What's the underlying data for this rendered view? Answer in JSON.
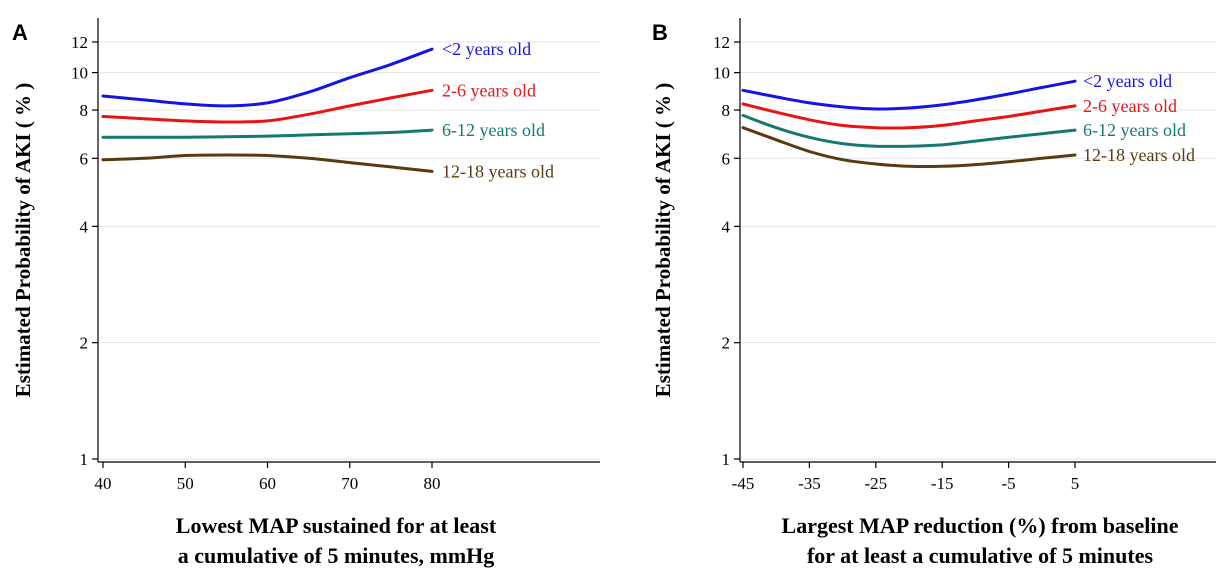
{
  "chart_data": [
    {
      "type": "line",
      "panel": "A",
      "title": "",
      "xlabel_lines": [
        "Lowest MAP sustained for at least",
        "a cumulative of 5 minutes, mmHg"
      ],
      "ylabel": "Estimated Probability of AKI ( % )",
      "y_scale": "log",
      "xlim": [
        40,
        80
      ],
      "ylim": [
        1,
        13
      ],
      "xticks": [
        40,
        50,
        60,
        70,
        80
      ],
      "yticks": [
        1,
        2,
        4,
        6,
        8,
        10,
        12
      ],
      "grid": "horizontal",
      "series": [
        {
          "name": "<2 years old",
          "color": "#1414e6",
          "x": [
            40,
            45,
            50,
            55,
            60,
            65,
            70,
            75,
            80
          ],
          "y": [
            8.7,
            8.5,
            8.3,
            8.2,
            8.35,
            8.9,
            9.7,
            10.5,
            11.5
          ]
        },
        {
          "name": "2-6 years old",
          "color": "#e81414",
          "x": [
            40,
            45,
            50,
            55,
            60,
            65,
            70,
            75,
            80
          ],
          "y": [
            7.7,
            7.6,
            7.5,
            7.45,
            7.5,
            7.8,
            8.2,
            8.6,
            9.0
          ]
        },
        {
          "name": "6-12 years old",
          "color": "#147a6e",
          "x": [
            40,
            45,
            50,
            55,
            60,
            65,
            70,
            75,
            80
          ],
          "y": [
            6.8,
            6.8,
            6.8,
            6.82,
            6.85,
            6.9,
            6.95,
            7.0,
            7.1
          ]
        },
        {
          "name": "12-18 years old",
          "color": "#5a3a10",
          "x": [
            40,
            45,
            50,
            55,
            60,
            65,
            70,
            75,
            80
          ],
          "y": [
            5.95,
            6.0,
            6.1,
            6.12,
            6.1,
            6.0,
            5.85,
            5.7,
            5.55
          ]
        }
      ]
    },
    {
      "type": "line",
      "panel": "B",
      "title": "",
      "xlabel_lines": [
        "Largest MAP reduction (%) from baseline",
        "for at least a cumulative of 5 minutes"
      ],
      "ylabel": "Estimated Probability of AKI ( % )",
      "y_scale": "log",
      "xlim": [
        -45,
        5
      ],
      "ylim": [
        1,
        13
      ],
      "xticks": [
        -45,
        -35,
        -25,
        -15,
        -5,
        5
      ],
      "yticks": [
        1,
        2,
        4,
        6,
        8,
        10,
        12
      ],
      "grid": "horizontal",
      "series": [
        {
          "name": "<2 years old",
          "color": "#1414e6",
          "x": [
            -45,
            -40,
            -35,
            -30,
            -25,
            -20,
            -15,
            -10,
            -5,
            0,
            5
          ],
          "y": [
            9.0,
            8.65,
            8.35,
            8.15,
            8.05,
            8.1,
            8.25,
            8.5,
            8.8,
            9.15,
            9.5
          ]
        },
        {
          "name": "2-6 years old",
          "color": "#e81414",
          "x": [
            -45,
            -40,
            -35,
            -30,
            -25,
            -20,
            -15,
            -10,
            -5,
            0,
            5
          ],
          "y": [
            8.3,
            7.9,
            7.55,
            7.3,
            7.2,
            7.2,
            7.3,
            7.5,
            7.7,
            7.95,
            8.2
          ]
        },
        {
          "name": "6-12 years old",
          "color": "#147a6e",
          "x": [
            -45,
            -40,
            -35,
            -30,
            -25,
            -20,
            -15,
            -10,
            -5,
            0,
            5
          ],
          "y": [
            7.75,
            7.2,
            6.8,
            6.55,
            6.45,
            6.45,
            6.5,
            6.65,
            6.8,
            6.95,
            7.1
          ]
        },
        {
          "name": "12-18 years old",
          "color": "#5a3a10",
          "x": [
            -45,
            -40,
            -35,
            -30,
            -25,
            -20,
            -15,
            -10,
            -5,
            0,
            5
          ],
          "y": [
            7.2,
            6.7,
            6.25,
            5.95,
            5.8,
            5.72,
            5.72,
            5.78,
            5.88,
            6.0,
            6.12
          ]
        }
      ]
    }
  ]
}
